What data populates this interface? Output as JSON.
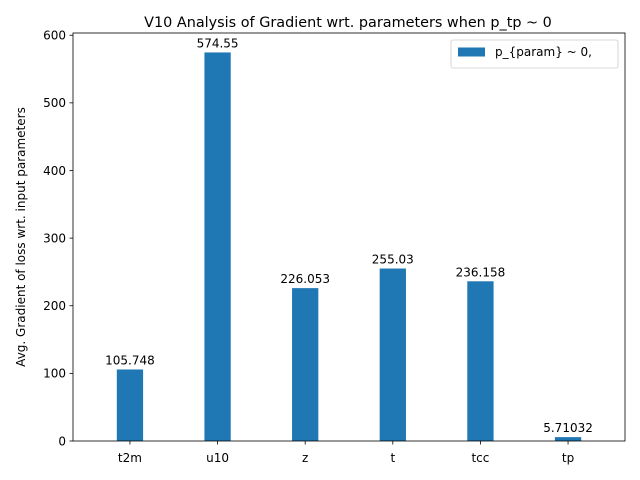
{
  "chart_data": {
    "type": "bar",
    "title": "V10 Analysis of Gradient wrt. parameters when p_tp ~ 0",
    "xlabel": "",
    "ylabel": "Avg. Gradient of loss wrt. input parameters",
    "categories": [
      "t2m",
      "u10",
      "z",
      "t",
      "tcc",
      "tp"
    ],
    "series": [
      {
        "name": "p_{param} ~ 0,",
        "values": [
          105.748,
          574.55,
          226.053,
          255.03,
          236.158,
          5.71032
        ],
        "labels": [
          "105.748",
          "574.55",
          "226.053",
          "255.03",
          "236.158",
          "5.71032"
        ],
        "color": "#1f77b4"
      }
    ],
    "ylim": [
      0,
      603.3
    ],
    "yticks": [
      0,
      100,
      200,
      300,
      400,
      500,
      600
    ],
    "grid": false,
    "legend_position": "top-right"
  }
}
